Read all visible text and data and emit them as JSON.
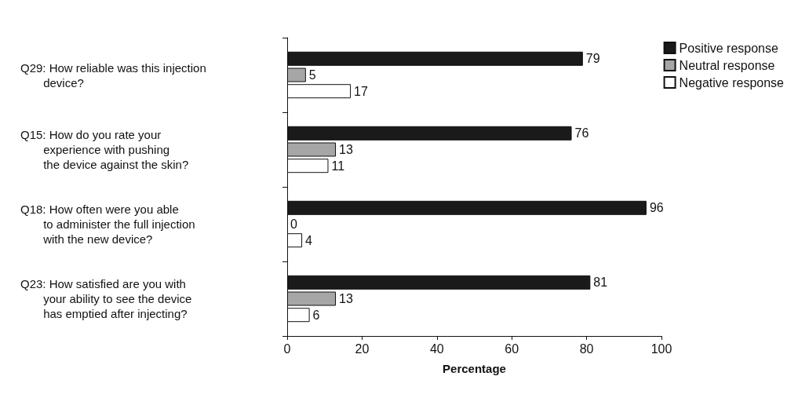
{
  "chart_data": {
    "type": "bar",
    "orientation": "horizontal",
    "xlabel": "Percentage",
    "categories": [
      "Q29: How reliable was this injection\n       device?",
      "Q15: How do you rate your\n       experience with pushing\n       the device against the skin?",
      "Q18: How often were you able\n       to administer the full injection\n       with the new device?",
      "Q23: How satisfied are you with\n       your ability to see the device\n       has emptied after injecting?"
    ],
    "series": [
      {
        "name": "Positive response",
        "color": "#1a1a1a",
        "values": [
          79,
          76,
          96,
          81
        ]
      },
      {
        "name": "Neutral response",
        "color": "#a6a6a6",
        "values": [
          5,
          13,
          0,
          13
        ]
      },
      {
        "name": "Negative response",
        "color": "#ffffff",
        "values": [
          17,
          11,
          4,
          6
        ]
      }
    ],
    "xlim": [
      0,
      100
    ],
    "xticks": [
      0,
      20,
      40,
      60,
      80,
      100
    ],
    "data_labels": true,
    "legend": "top right",
    "grid": false
  }
}
